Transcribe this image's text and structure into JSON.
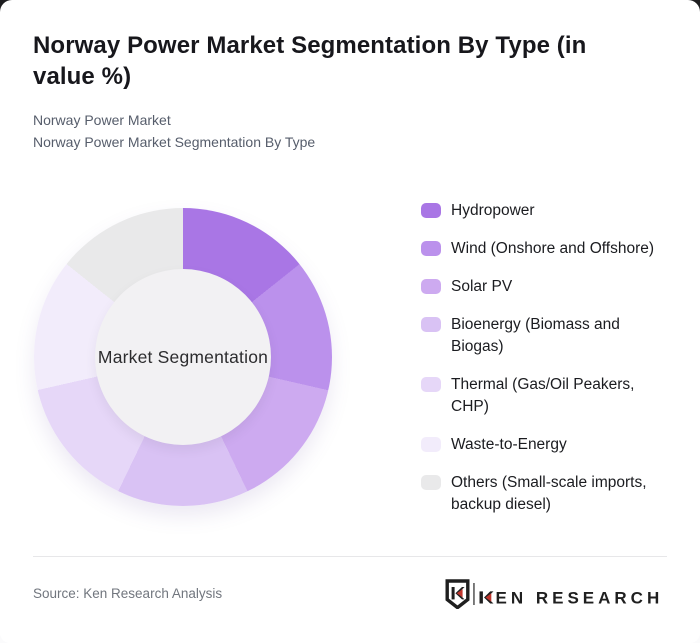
{
  "header": {
    "title": "Norway Power Market Segmentation By Type (in value %)",
    "subtitle_lines": [
      "Norway Power Market",
      "Norway Power Market Segmentation By Type"
    ]
  },
  "chart_data": {
    "type": "pie",
    "subtype": "donut",
    "title": "Norway Power Market Segmentation By Type (in value %)",
    "center_label": "Market Segmentation",
    "categories": [
      "Hydropower",
      "Wind (Onshore and Offshore)",
      "Solar PV",
      "Bioenergy (Biomass and Biogas)",
      "Thermal (Gas/Oil Peakers, CHP)",
      "Waste-to-Energy",
      "Others (Small-scale imports, backup diesel)"
    ],
    "values": [
      14.29,
      14.29,
      14.29,
      14.29,
      14.28,
      14.28,
      14.28
    ],
    "colors": [
      "#a976e5",
      "#bb91ec",
      "#cdaaf0",
      "#d9c2f4",
      "#e6d7f8",
      "#f2ecfb",
      "#e9e9ea"
    ],
    "start_angle_deg": 0,
    "legend_position": "right",
    "value_labels_shown": false,
    "hole_color": "#f2f1f3"
  },
  "footer": {
    "source": "Source: Ken Research Analysis",
    "brand": "KEN RESEARCH",
    "brand_text_after_k": "EN RESEARCH",
    "brand_red": "#c0362e",
    "brand_black": "#1f1f1f"
  }
}
